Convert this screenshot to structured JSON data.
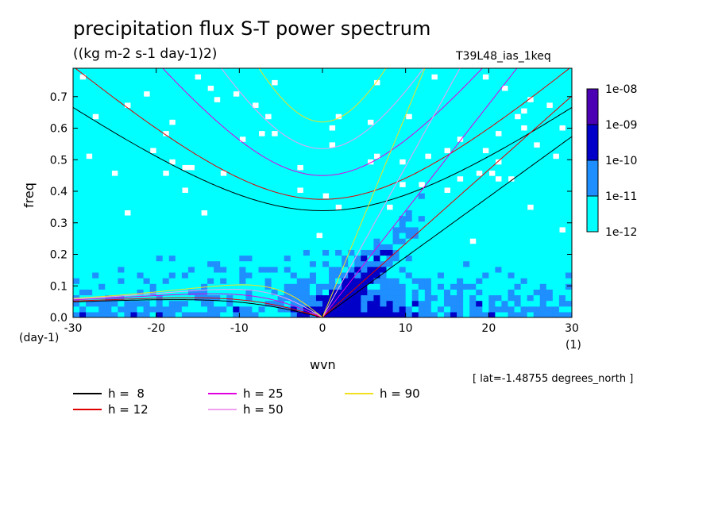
{
  "title": "precipitation flux S-T power spectrum",
  "subtitle": "((kg m-2 s-1 day-1)2)",
  "run_name": "T39L48_ias_1keq",
  "lat_note": "[ lat=-1.48755 degrees_north ]",
  "chart_data": {
    "type": "heatmap",
    "xlabel": "wvn",
    "ylabel": "freq",
    "x_unit": "(1)",
    "y_unit": "(day-1)",
    "xlim": [
      -30,
      30
    ],
    "ylim": [
      0,
      0.79
    ],
    "xticks": [
      -30,
      -20,
      -10,
      0,
      10,
      20,
      30
    ],
    "xtick_labels": [
      "-30",
      "-20",
      "-10",
      "0",
      "10",
      "20",
      "30"
    ],
    "yticks": [
      0.0,
      0.1,
      0.2,
      0.3,
      0.4,
      0.5,
      0.6,
      0.7
    ],
    "ytick_labels": [
      "0.0",
      "0.1",
      "0.2",
      "0.3",
      "0.4",
      "0.5",
      "0.6",
      "0.7"
    ],
    "colorbar": {
      "levels": [
        "1e-12",
        "1e-11",
        "1e-10",
        "1e-09",
        "1e-08"
      ],
      "colors": [
        "#00ffff",
        "#1f8fff",
        "#0000c8",
        "#4b00b4"
      ]
    },
    "dispersion_legend": [
      {
        "label": "h =  8",
        "h": 8,
        "color": "#000000"
      },
      {
        "label": "h = 12",
        "h": 12,
        "color": "#e00000"
      },
      {
        "label": "h = 25",
        "h": 25,
        "color": "#e000e0"
      },
      {
        "label": "h = 50",
        "h": 50,
        "color": "#f0a0f0"
      },
      {
        "label": "h = 90",
        "h": 90,
        "color": "#f0e020"
      }
    ]
  }
}
